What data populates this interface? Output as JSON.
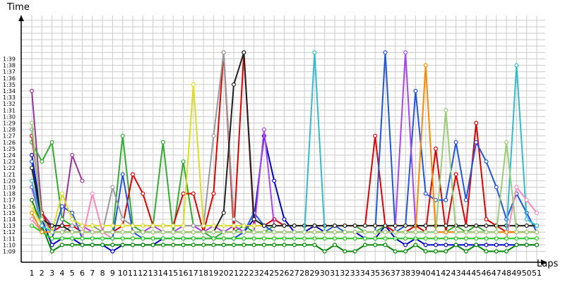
{
  "chart_data": {
    "type": "line",
    "title": "",
    "ylabel": "Time",
    "xlabel": "Laps",
    "x_ticks": [
      "1",
      "2",
      "3",
      "4",
      "5",
      "6",
      "7",
      "8",
      "9",
      "10",
      "11",
      "12",
      "13",
      "14",
      "15",
      "16",
      "17",
      "18",
      "19",
      "20",
      "21",
      "22",
      "23",
      "24",
      "25",
      "26",
      "27",
      "28",
      "29",
      "30",
      "31",
      "32",
      "33",
      "34",
      "35",
      "36",
      "37",
      "38",
      "39",
      "40",
      "41",
      "42",
      "43",
      "44",
      "45",
      "46",
      "47",
      "48",
      "49",
      "50",
      "51"
    ],
    "y_ticks": [
      "1:09",
      "1:10",
      "1:11",
      "1:12",
      "1:13",
      "1:14",
      "1:15",
      "1:16",
      "1:17",
      "1:18",
      "1:19",
      "1:20",
      "1:21",
      "1:22",
      "1:23",
      "1:24",
      "1:25",
      "1:26",
      "1:27",
      "1:28",
      "1:29",
      "1:30",
      "1:31",
      "1:32",
      "1:33",
      "1:34",
      "1:35",
      "1:36",
      "1:37",
      "1:38",
      "1:39"
    ],
    "ylim": [
      68,
      100
    ],
    "xlim": [
      1,
      51
    ],
    "grid": true,
    "legend": false,
    "series": [
      {
        "color": "#0000cc",
        "values": [
          84,
          74,
          70,
          71,
          71,
          70,
          70,
          70,
          69,
          70,
          70,
          70,
          70,
          71,
          71,
          71,
          71,
          71,
          71,
          71,
          71,
          72,
          74,
          87,
          80,
          74,
          72,
          72,
          73,
          72,
          72,
          72,
          72,
          71,
          71,
          73,
          71,
          70,
          71,
          70,
          70,
          70,
          70,
          70,
          70,
          70,
          70,
          70,
          70,
          70,
          70
        ]
      },
      {
        "color": "#008800",
        "values": [
          77,
          73,
          69,
          70,
          70,
          70,
          70,
          70,
          70,
          70,
          70,
          70,
          70,
          70,
          70,
          70,
          70,
          70,
          70,
          70,
          70,
          70,
          70,
          70,
          70,
          70,
          70,
          70,
          70,
          69,
          70,
          69,
          69,
          70,
          70,
          70,
          69,
          69,
          70,
          69,
          69,
          69,
          70,
          69,
          70,
          69,
          69,
          69,
          70,
          70,
          70
        ]
      },
      {
        "color": "#993399",
        "values": [
          94,
          75,
          73,
          73,
          84,
          80,
          null,
          null,
          null,
          null,
          null,
          null,
          null,
          null,
          null,
          null,
          null,
          null,
          null,
          null,
          null,
          null,
          null,
          null,
          null,
          null,
          null,
          null,
          null,
          null,
          null,
          null,
          null,
          null,
          null,
          null,
          null,
          null,
          null,
          null,
          null,
          null,
          null,
          null,
          null,
          null,
          null,
          null,
          null,
          null,
          null
        ]
      },
      {
        "color": "#33aa33",
        "values": [
          86,
          83,
          86,
          74,
          73,
          73,
          73,
          72,
          72,
          87,
          73,
          72,
          73,
          86,
          72,
          83,
          73,
          72,
          71,
          72,
          72,
          73,
          72,
          72,
          73,
          73,
          73,
          73,
          73,
          73,
          73,
          73,
          73,
          72,
          72,
          73,
          72,
          72,
          72,
          72,
          72,
          72,
          73,
          72,
          73,
          72,
          72,
          72,
          72,
          72,
          72
        ]
      },
      {
        "color": "#dd0000",
        "values": [
          87,
          75,
          72,
          73,
          73,
          72,
          72,
          72,
          72,
          73,
          81,
          78,
          73,
          73,
          73,
          78,
          78,
          72,
          78,
          100,
          72,
          100,
          73,
          73,
          74,
          73,
          73,
          73,
          73,
          73,
          73,
          73,
          73,
          73,
          87,
          73,
          72,
          72,
          73,
          72,
          85,
          72,
          81,
          73,
          89,
          74,
          73,
          72,
          72,
          72,
          72
        ]
      },
      {
        "color": "#2255dd",
        "values": [
          83,
          72,
          71,
          76,
          75,
          71,
          71,
          71,
          71,
          81,
          72,
          71,
          71,
          71,
          71,
          71,
          71,
          71,
          71,
          71,
          71,
          72,
          75,
          73,
          72,
          72,
          72,
          72,
          72,
          72,
          73,
          72,
          72,
          72,
          72,
          100,
          72,
          73,
          94,
          78,
          77,
          77,
          86,
          77,
          86,
          83,
          79,
          74,
          78,
          75,
          72
        ]
      },
      {
        "color": "#aa44ee",
        "values": [
          79,
          73,
          72,
          72,
          73,
          73,
          72,
          72,
          72,
          72,
          72,
          72,
          73,
          72,
          72,
          73,
          73,
          72,
          73,
          72,
          73,
          72,
          72,
          88,
          73,
          73,
          73,
          73,
          73,
          73,
          73,
          73,
          73,
          73,
          73,
          73,
          73,
          100,
          73,
          73,
          73,
          73,
          73,
          73,
          73,
          73,
          73,
          73,
          73,
          73,
          73
        ]
      },
      {
        "color": "#999999",
        "values": [
          88,
          74,
          72,
          72,
          73,
          73,
          73,
          72,
          79,
          74,
          73,
          73,
          73,
          73,
          73,
          73,
          73,
          73,
          87,
          100,
          74,
          73,
          73,
          73,
          73,
          73,
          73,
          73,
          73,
          73,
          73,
          73,
          73,
          73,
          73,
          73,
          73,
          73,
          73,
          73,
          73,
          73,
          73,
          73,
          73,
          73,
          73,
          73,
          73,
          73,
          73
        ]
      },
      {
        "color": "#dddd22",
        "values": [
          76,
          73,
          72,
          78,
          74,
          73,
          73,
          73,
          73,
          73,
          73,
          73,
          73,
          73,
          73,
          73,
          95,
          73,
          73,
          73,
          73,
          73,
          73,
          73,
          73,
          73,
          73,
          73,
          73,
          73,
          73,
          73,
          73,
          73,
          73,
          73,
          73,
          73,
          73,
          73,
          73,
          73,
          73,
          73,
          73,
          73,
          73,
          73,
          73,
          73,
          73
        ]
      },
      {
        "color": "#222222",
        "values": [
          82,
          74,
          73,
          73,
          72,
          72,
          72,
          72,
          72,
          72,
          72,
          72,
          72,
          72,
          72,
          72,
          72,
          72,
          72,
          75,
          95,
          100,
          74,
          73,
          73,
          73,
          73,
          73,
          73,
          73,
          73,
          73,
          73,
          73,
          73,
          73,
          73,
          73,
          73,
          73,
          73,
          73,
          73,
          73,
          73,
          73,
          73,
          73,
          73,
          73,
          73
        ]
      },
      {
        "color": "#33bbcc",
        "values": [
          80,
          73,
          72,
          72,
          72,
          72,
          72,
          72,
          72,
          72,
          72,
          72,
          72,
          72,
          72,
          72,
          72,
          72,
          72,
          72,
          72,
          72,
          72,
          72,
          72,
          72,
          72,
          72,
          100,
          72,
          72,
          72,
          72,
          72,
          72,
          72,
          72,
          72,
          72,
          72,
          72,
          72,
          72,
          72,
          72,
          72,
          72,
          72,
          98,
          74,
          73
        ]
      },
      {
        "color": "#ff88bb",
        "values": [
          74,
          72,
          71,
          71,
          71,
          71,
          78,
          72,
          71,
          71,
          71,
          71,
          71,
          71,
          71,
          71,
          71,
          71,
          71,
          71,
          71,
          71,
          71,
          71,
          71,
          71,
          71,
          71,
          71,
          71,
          71,
          71,
          71,
          71,
          71,
          71,
          71,
          71,
          71,
          71,
          71,
          71,
          71,
          71,
          71,
          71,
          71,
          71,
          79,
          77,
          75
        ]
      },
      {
        "color": "#22cc22",
        "values": [
          73,
          72,
          71,
          71,
          71,
          71,
          71,
          71,
          71,
          71,
          71,
          71,
          71,
          71,
          71,
          71,
          71,
          71,
          71,
          71,
          71,
          71,
          71,
          71,
          71,
          71,
          71,
          71,
          71,
          71,
          71,
          71,
          71,
          71,
          71,
          71,
          71,
          71,
          71,
          71,
          71,
          71,
          71,
          71,
          71,
          71,
          71,
          71,
          71,
          71,
          71
        ]
      },
      {
        "color": "#ff8800",
        "values": [
          75,
          72,
          72,
          72,
          72,
          72,
          72,
          72,
          72,
          72,
          72,
          72,
          72,
          72,
          72,
          72,
          72,
          72,
          72,
          72,
          72,
          72,
          72,
          72,
          72,
          72,
          72,
          72,
          72,
          72,
          72,
          72,
          72,
          72,
          72,
          72,
          72,
          72,
          72,
          98,
          72,
          72,
          72,
          72,
          72,
          72,
          72,
          72,
          72,
          72,
          72
        ]
      },
      {
        "color": "#99cc77",
        "values": [
          89,
          74,
          72,
          72,
          72,
          72,
          72,
          72,
          72,
          72,
          72,
          72,
          72,
          72,
          72,
          72,
          72,
          72,
          72,
          72,
          72,
          72,
          72,
          72,
          72,
          72,
          72,
          72,
          72,
          72,
          72,
          72,
          72,
          72,
          72,
          72,
          72,
          72,
          72,
          72,
          72,
          91,
          72,
          72,
          72,
          72,
          72,
          86,
          72,
          72,
          72
        ]
      }
    ]
  }
}
